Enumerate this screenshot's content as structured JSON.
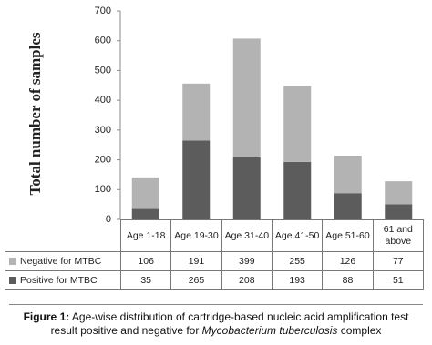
{
  "chart_data": {
    "type": "stacked_bar",
    "y_label": "Total number of samples",
    "categories": [
      "Age 1-18",
      "Age 19-30",
      "Age 31-40",
      "Age 41-50",
      "Age 51-60",
      "61 and above"
    ],
    "series": [
      {
        "name": "Negative for MTBC",
        "color": "#b3b3b3",
        "values": [
          106,
          191,
          399,
          255,
          126,
          77
        ]
      },
      {
        "name": "Positive for MTBC",
        "color": "#5c5c5c",
        "values": [
          35,
          265,
          208,
          193,
          88,
          51
        ]
      }
    ],
    "ylim": [
      0,
      700
    ],
    "yticks": [
      0,
      100,
      200,
      300,
      400,
      500,
      600,
      700
    ],
    "caption": {
      "label": "Figure 1:",
      "text_before": "Age-wise distribution of cartridge-based nucleic acid amplification test result positive and negative for",
      "italic": "Mycobacterium tuberculosis",
      "text_after": "complex"
    }
  }
}
